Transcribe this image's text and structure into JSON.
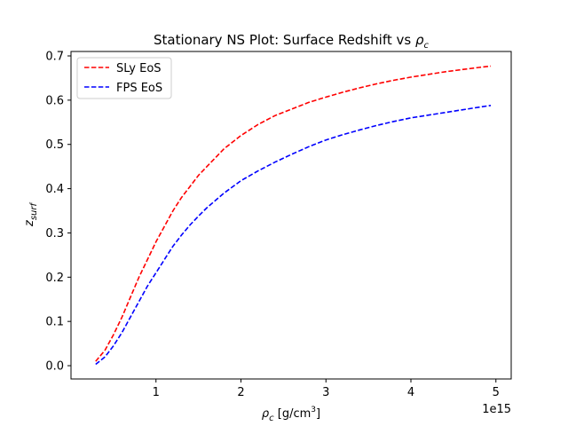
{
  "chart_data": {
    "type": "line",
    "title": {
      "text": "Stationary NS Plot: Surface Redshift vs ",
      "symbol": "ρ",
      "subscript": "c"
    },
    "xlabel": {
      "symbol": "ρ",
      "subscript": "c",
      "units_prefix": " [g/cm",
      "units_superscript": "3",
      "units_suffix": "]"
    },
    "ylabel": {
      "symbol": "z",
      "subscript": "surf"
    },
    "x_offset_label": "1e15",
    "xlim": [
      0.0,
      5.18
    ],
    "ylim": [
      -0.03,
      0.71
    ],
    "x_ticks": [
      1,
      2,
      3,
      4,
      5
    ],
    "x_tick_labels": [
      "1",
      "2",
      "3",
      "4",
      "5"
    ],
    "y_ticks": [
      0.0,
      0.1,
      0.2,
      0.3,
      0.4,
      0.5,
      0.6,
      0.7
    ],
    "y_tick_labels": [
      "0.0",
      "0.1",
      "0.2",
      "0.3",
      "0.4",
      "0.5",
      "0.6",
      "0.7"
    ],
    "grid": false,
    "legend_position": "top-left",
    "series": [
      {
        "name": "SLy EoS",
        "color": "#ff0000",
        "linestyle": "dashed",
        "x": [
          0.29,
          0.4,
          0.5,
          0.6,
          0.7,
          0.8,
          0.9,
          1.0,
          1.1,
          1.2,
          1.3,
          1.4,
          1.5,
          1.6,
          1.8,
          2.0,
          2.2,
          2.4,
          2.6,
          2.8,
          3.0,
          3.2,
          3.4,
          3.6,
          3.8,
          4.0,
          4.2,
          4.4,
          4.6,
          4.8,
          4.94
        ],
        "y": [
          0.01,
          0.035,
          0.07,
          0.11,
          0.155,
          0.2,
          0.24,
          0.28,
          0.315,
          0.35,
          0.38,
          0.405,
          0.43,
          0.45,
          0.49,
          0.52,
          0.545,
          0.565,
          0.58,
          0.595,
          0.607,
          0.618,
          0.628,
          0.637,
          0.645,
          0.652,
          0.658,
          0.664,
          0.669,
          0.674,
          0.677
        ]
      },
      {
        "name": "FPS EoS",
        "color": "#0000ff",
        "linestyle": "dashed",
        "x": [
          0.29,
          0.4,
          0.5,
          0.6,
          0.7,
          0.8,
          0.9,
          1.0,
          1.1,
          1.2,
          1.3,
          1.4,
          1.5,
          1.6,
          1.8,
          2.0,
          2.2,
          2.4,
          2.6,
          2.8,
          3.0,
          3.2,
          3.4,
          3.6,
          3.8,
          4.0,
          4.2,
          4.4,
          4.6,
          4.8,
          4.94
        ],
        "y": [
          0.003,
          0.02,
          0.045,
          0.075,
          0.11,
          0.145,
          0.18,
          0.21,
          0.24,
          0.27,
          0.295,
          0.318,
          0.338,
          0.357,
          0.39,
          0.418,
          0.44,
          0.46,
          0.478,
          0.495,
          0.51,
          0.522,
          0.533,
          0.543,
          0.552,
          0.56,
          0.566,
          0.572,
          0.578,
          0.584,
          0.588
        ]
      }
    ]
  }
}
